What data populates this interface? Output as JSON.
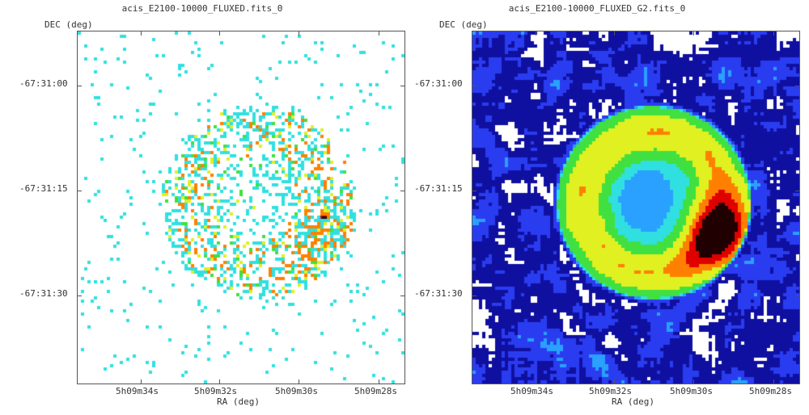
{
  "panels": [
    {
      "title": "acis_E2100-10000_FLUXED.fits_0",
      "ylabel": "DEC (deg)",
      "xlabel": "RA (deg)",
      "yticks": [
        "-67:31:00",
        "-67:31:15",
        "-67:31:30"
      ],
      "xticks": [
        "5h09m34s",
        "5h09m32s",
        "5h09m30s",
        "5h09m28s"
      ],
      "image": "raw-counts-scatter"
    },
    {
      "title": "acis_E2100-10000_FLUXED_G2.fits_0",
      "ylabel": "DEC (deg)",
      "xlabel": "RA (deg)",
      "yticks": [
        "-67:31:00",
        "-67:31:15",
        "-67:31:30"
      ],
      "xticks": [
        "5h09m34s",
        "5h09m32s",
        "5h09m30s",
        "5h09m28s"
      ],
      "image": "gaussian-smoothed-shell"
    }
  ],
  "colormap": [
    "#ffffff",
    "#1010a0",
    "#2a3cf0",
    "#2aa0ff",
    "#30e0e0",
    "#40e040",
    "#e0f020",
    "#ff8000",
    "#e00000",
    "#200000"
  ]
}
